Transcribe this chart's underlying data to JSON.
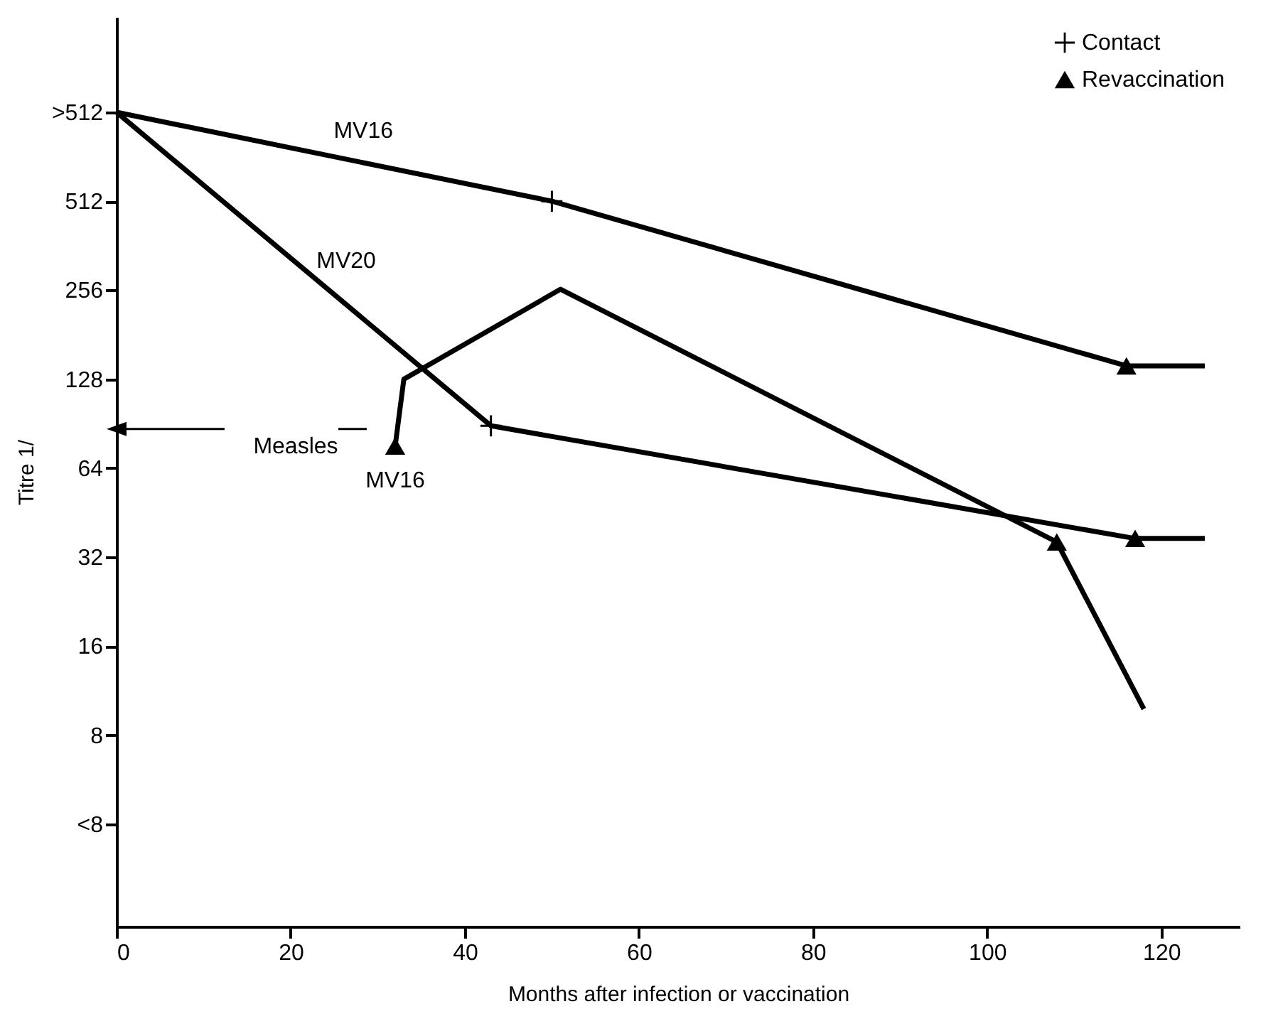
{
  "chart_data": {
    "type": "line",
    "xlabel": "Months after infection or vaccination",
    "ylabel": "Titre 1/",
    "log": "y",
    "xlim": [
      0,
      129
    ],
    "xticks": [
      0,
      20,
      40,
      60,
      80,
      100,
      120
    ],
    "ylim": [
      1.8,
      2150
    ],
    "yticks": [
      {
        "value": 1024,
        "label": ">512"
      },
      512,
      256,
      128,
      64,
      32,
      16,
      8,
      {
        "value": 4,
        "label": "<8"
      }
    ],
    "grid": false,
    "legend": "top right",
    "line_style": "solid",
    "series": [
      {
        "name": "MV16",
        "color": "#000000",
        "marker": "none",
        "x": [
          0,
          50,
          116,
          125
        ],
        "values": [
          1024,
          512,
          142,
          142
        ]
      },
      {
        "name": "MV20",
        "color": "#000000",
        "marker": "none",
        "x": [
          0,
          43,
          117,
          125
        ],
        "values": [
          1024,
          89,
          37,
          37
        ]
      },
      {
        "color": "#000000",
        "marker": "none",
        "x": [
          32,
          33,
          51,
          108,
          118
        ],
        "values": [
          76,
          128,
          258,
          36,
          9.8
        ]
      },
      {
        "type": "scatter",
        "name": "Contact",
        "color": "#000000",
        "marker": "cross",
        "x": [
          50,
          43
        ],
        "values": [
          512,
          89
        ]
      },
      {
        "type": "scatter",
        "name": "Revaccination",
        "color": "#000000",
        "marker": "triangle",
        "x": [
          116,
          117,
          108,
          32
        ],
        "values": [
          142,
          37,
          36,
          76
        ]
      }
    ],
    "annotations": [
      {
        "text": "MV16",
        "x": 32,
        "y": 76
      },
      {
        "text": "Measles",
        "x": 32,
        "y": 76
      }
    ]
  }
}
